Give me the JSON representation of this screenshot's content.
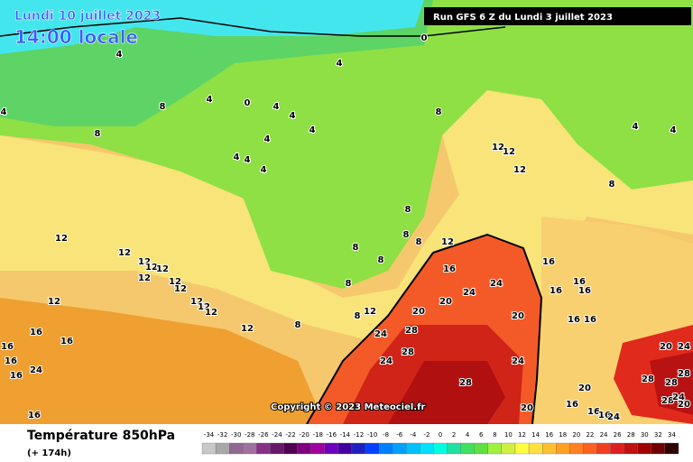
{
  "header": {
    "date": "Lundi 10 juillet 2023",
    "time": "14:00 locale",
    "run": "Run GFS 6 Z du Lundi 3 juillet 2023"
  },
  "copyright": "Copyright © 2023 Meteociel.fr",
  "footer": {
    "title": "Température 850hPa",
    "lead": "(+ 174h)"
  },
  "legend": {
    "values": [
      -34,
      -32,
      -30,
      -28,
      -26,
      -24,
      -22,
      -20,
      -18,
      -16,
      -14,
      -12,
      -10,
      -8,
      -6,
      -4,
      -2,
      0,
      2,
      4,
      6,
      8,
      10,
      12,
      14,
      16,
      18,
      20,
      22,
      24,
      26,
      28,
      30,
      32,
      34
    ],
    "colors": [
      "#c8c8c8",
      "#a8a8a8",
      "#906890",
      "#a070a0",
      "#883088",
      "#681868",
      "#500050",
      "#800080",
      "#a000a0",
      "#7000c0",
      "#4000a0",
      "#2020c0",
      "#0040ff",
      "#0080ff",
      "#00a0ff",
      "#00c0ff",
      "#00e0ff",
      "#00ffe0",
      "#20e0a0",
      "#40e060",
      "#60e040",
      "#a0f040",
      "#d0f040",
      "#ffff40",
      "#ffe040",
      "#ffc030",
      "#ffa020",
      "#ff8020",
      "#ff6020",
      "#f04020",
      "#e02020",
      "#c01010",
      "#a00000",
      "#700000",
      "#300000"
    ]
  },
  "contour_labels": [
    4,
    4,
    0,
    4,
    8,
    0,
    4,
    4,
    4,
    4,
    4,
    4,
    4,
    8,
    4,
    8,
    12,
    12,
    12,
    8,
    4,
    4,
    12,
    12,
    12,
    12,
    12,
    12,
    12,
    12,
    12,
    12,
    12,
    12,
    12,
    8,
    8,
    8,
    8,
    8,
    8,
    12,
    8,
    12,
    8,
    16,
    20,
    24,
    24,
    16,
    16,
    16,
    16,
    20,
    20,
    24,
    28,
    24,
    28,
    24,
    28,
    20,
    16,
    16,
    16,
    16,
    16,
    24,
    16,
    16,
    16,
    16,
    16,
    16,
    24,
    20,
    20,
    28,
    24,
    28,
    28,
    28,
    24,
    20
  ]
}
